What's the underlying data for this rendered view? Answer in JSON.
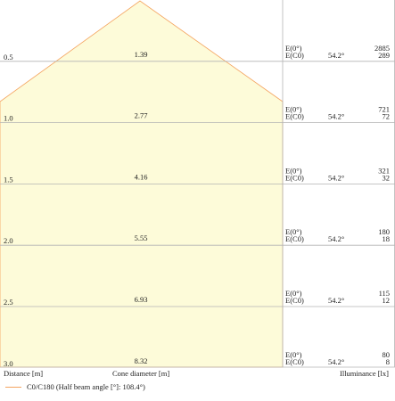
{
  "colors": {
    "cone_fill": "#fdfbd9",
    "cone_edge": "#f4a460",
    "grid": "#b4b4b4",
    "text": "#222222"
  },
  "rows": [
    {
      "distance": "0.5",
      "diameter": "1.39",
      "e0_label": "E(0°)",
      "ec0_label": "E(C0)",
      "angle": "54.2°",
      "e0_value": "2885",
      "ec0_value": "289"
    },
    {
      "distance": "1.0",
      "diameter": "2.77",
      "e0_label": "E(0°)",
      "ec0_label": "E(C0)",
      "angle": "54.2°",
      "e0_value": "721",
      "ec0_value": "72"
    },
    {
      "distance": "1.5",
      "diameter": "4.16",
      "e0_label": "E(0°)",
      "ec0_label": "E(C0)",
      "angle": "54.2°",
      "e0_value": "321",
      "ec0_value": "32"
    },
    {
      "distance": "2.0",
      "diameter": "5.55",
      "e0_label": "E(0°)",
      "ec0_label": "E(C0)",
      "angle": "54.2°",
      "e0_value": "180",
      "ec0_value": "18"
    },
    {
      "distance": "2.5",
      "diameter": "6.93",
      "e0_label": "E(0°)",
      "ec0_label": "E(C0)",
      "angle": "54.2°",
      "e0_value": "115",
      "ec0_value": "12"
    },
    {
      "distance": "3.0",
      "diameter": "8.32",
      "e0_label": "E(0°)",
      "ec0_label": "E(C0)",
      "angle": "54.2°",
      "e0_value": "80",
      "ec0_value": "8"
    }
  ],
  "footer": {
    "distance_label": "Distance [m]",
    "diameter_label": "Cone diameter [m]",
    "illuminance_label": "Illuminance [lx]"
  },
  "legend": {
    "label": "C0/C180 (Half beam angle [°]: 108.4°)"
  }
}
